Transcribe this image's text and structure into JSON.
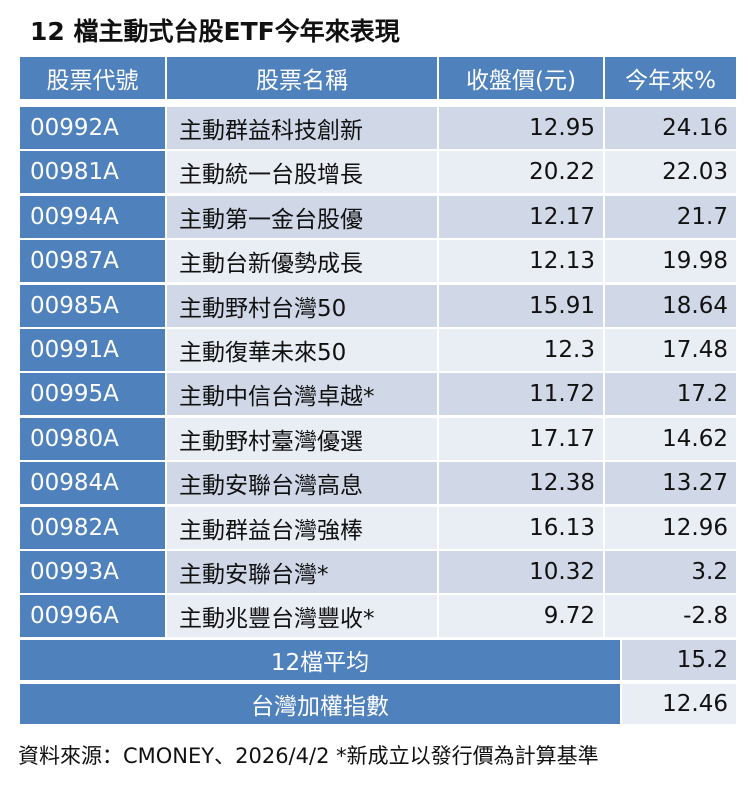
{
  "title": "12 檔主動式台股ETF今年來表現",
  "table": {
    "headers": [
      "股票代號",
      "股票名稱",
      "收盤價(元)",
      "今年來%"
    ],
    "rows": [
      {
        "code": "00992A",
        "name": "主動群益科技創新",
        "close": "12.95",
        "ytd": "24.16"
      },
      {
        "code": "00981A",
        "name": "主動統一台股增長",
        "close": "20.22",
        "ytd": "22.03"
      },
      {
        "code": "00994A",
        "name": "主動第一金台股優",
        "close": "12.17",
        "ytd": "21.7"
      },
      {
        "code": "00987A",
        "name": "主動台新優勢成長",
        "close": "12.13",
        "ytd": "19.98"
      },
      {
        "code": "00985A",
        "name": "主動野村台灣50",
        "close": "15.91",
        "ytd": "18.64"
      },
      {
        "code": "00991A",
        "name": "主動復華未來50",
        "close": "12.3",
        "ytd": "17.48"
      },
      {
        "code": "00995A",
        "name": "主動中信台灣卓越*",
        "close": "11.72",
        "ytd": "17.2"
      },
      {
        "code": "00980A",
        "name": "主動野村臺灣優選",
        "close": "17.17",
        "ytd": "14.62"
      },
      {
        "code": "00984A",
        "name": "主動安聯台灣高息",
        "close": "12.38",
        "ytd": "13.27"
      },
      {
        "code": "00982A",
        "name": "主動群益台灣強棒",
        "close": "16.13",
        "ytd": "12.96"
      },
      {
        "code": "00993A",
        "name": "主動安聯台灣*",
        "close": "10.32",
        "ytd": "3.2"
      },
      {
        "code": "00996A",
        "name": "主動兆豐台灣豐收*",
        "close": "9.72",
        "ytd": "-2.8"
      }
    ],
    "summary": [
      {
        "label": "12檔平均",
        "value": "15.2"
      },
      {
        "label": "台灣加權指數",
        "value": "12.46"
      }
    ]
  },
  "footnote": "資料來源：CMONEY、2026/4/2 *新成立以發行價為計算基準",
  "colors": {
    "header_blue": "#4f81bd",
    "row_dark": "#d0d8e8",
    "row_light": "#e9edf4"
  }
}
